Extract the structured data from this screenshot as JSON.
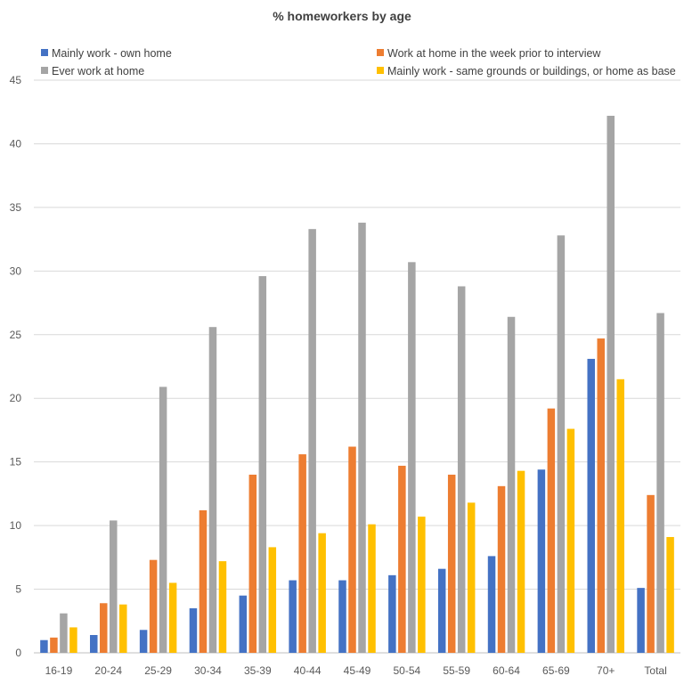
{
  "chart_data": {
    "type": "bar",
    "title": "% homeworkers by age",
    "xlabel": "",
    "ylabel": "",
    "ylim": [
      0,
      45
    ],
    "yticks": [
      0,
      5,
      10,
      15,
      20,
      25,
      30,
      35,
      40,
      45
    ],
    "grid": true,
    "legend_position": "top",
    "categories": [
      "16-19",
      "20-24",
      "25-29",
      "30-34",
      "35-39",
      "40-44",
      "45-49",
      "50-54",
      "55-59",
      "60-64",
      "65-69",
      "70+",
      "Total"
    ],
    "series": [
      {
        "name": "Mainly work - own home",
        "color": "#4472c4",
        "values": [
          1.0,
          1.4,
          1.8,
          3.5,
          4.5,
          5.7,
          5.7,
          6.1,
          6.6,
          7.6,
          14.4,
          23.1,
          5.1
        ]
      },
      {
        "name": "Work at home in the week prior to interview",
        "color": "#ed7d31",
        "values": [
          1.2,
          3.9,
          7.3,
          11.2,
          14.0,
          15.6,
          16.2,
          14.7,
          14.0,
          13.1,
          19.2,
          24.7,
          12.4
        ]
      },
      {
        "name": "Ever work at home",
        "color": "#a5a5a5",
        "values": [
          3.1,
          10.4,
          20.9,
          25.6,
          29.6,
          33.3,
          33.8,
          30.7,
          28.8,
          26.4,
          32.8,
          42.2,
          26.7
        ]
      },
      {
        "name": "Mainly work - same grounds or buildings, or home as base",
        "color": "#ffc000",
        "values": [
          2.0,
          3.8,
          5.5,
          7.2,
          8.3,
          9.4,
          10.1,
          10.7,
          11.8,
          14.3,
          17.6,
          21.5,
          9.1
        ]
      }
    ]
  }
}
